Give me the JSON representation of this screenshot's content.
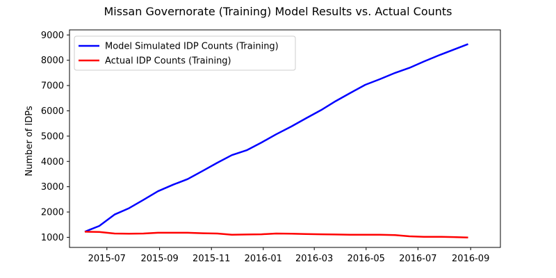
{
  "chart_data": {
    "type": "line",
    "title": "Missan Governorate (Training) Model Results vs. Actual Counts",
    "xlabel": "",
    "ylabel": "Number of IDPs",
    "x_range": [
      "2015-05-18",
      "2016-10-06"
    ],
    "ylim": [
      600,
      9200
    ],
    "x_ticks": [
      "2015-07",
      "2015-09",
      "2015-11",
      "2016-01",
      "2016-03",
      "2016-05",
      "2016-07",
      "2016-09"
    ],
    "y_ticks": [
      1000,
      2000,
      3000,
      4000,
      5000,
      6000,
      7000,
      8000,
      9000
    ],
    "grid": false,
    "legend_placement": "top-left",
    "series": [
      {
        "name": "Model Simulated IDP Counts (Training)",
        "color": "#0000ff",
        "points": [
          [
            "2015-06-05",
            1220
          ],
          [
            "2015-06-22",
            1450
          ],
          [
            "2015-07-10",
            1900
          ],
          [
            "2015-07-27",
            2150
          ],
          [
            "2015-08-13",
            2480
          ],
          [
            "2015-08-30",
            2820
          ],
          [
            "2015-09-17",
            3080
          ],
          [
            "2015-10-04",
            3300
          ],
          [
            "2015-10-22",
            3630
          ],
          [
            "2015-11-08",
            3950
          ],
          [
            "2015-11-25",
            4250
          ],
          [
            "2015-12-13",
            4450
          ],
          [
            "2015-12-30",
            4750
          ],
          [
            "2016-01-16",
            5070
          ],
          [
            "2016-02-03",
            5380
          ],
          [
            "2016-02-20",
            5700
          ],
          [
            "2016-03-09",
            6030
          ],
          [
            "2016-03-26",
            6380
          ],
          [
            "2016-04-12",
            6700
          ],
          [
            "2016-04-30",
            7030
          ],
          [
            "2016-05-17",
            7250
          ],
          [
            "2016-06-04",
            7500
          ],
          [
            "2016-06-21",
            7700
          ],
          [
            "2016-07-08",
            7950
          ],
          [
            "2016-07-26",
            8200
          ],
          [
            "2016-08-12",
            8420
          ],
          [
            "2016-08-29",
            8640
          ]
        ]
      },
      {
        "name": "Actual IDP Counts (Training)",
        "color": "#ff0000",
        "points": [
          [
            "2015-06-05",
            1220
          ],
          [
            "2015-06-22",
            1210
          ],
          [
            "2015-07-10",
            1150
          ],
          [
            "2015-07-27",
            1140
          ],
          [
            "2015-08-13",
            1150
          ],
          [
            "2015-08-30",
            1180
          ],
          [
            "2015-09-17",
            1180
          ],
          [
            "2015-10-04",
            1180
          ],
          [
            "2015-10-22",
            1160
          ],
          [
            "2015-11-08",
            1150
          ],
          [
            "2015-11-25",
            1100
          ],
          [
            "2015-12-13",
            1110
          ],
          [
            "2015-12-30",
            1120
          ],
          [
            "2016-01-16",
            1150
          ],
          [
            "2016-02-03",
            1140
          ],
          [
            "2016-02-20",
            1130
          ],
          [
            "2016-03-09",
            1120
          ],
          [
            "2016-03-26",
            1110
          ],
          [
            "2016-04-12",
            1100
          ],
          [
            "2016-04-30",
            1100
          ],
          [
            "2016-05-17",
            1100
          ],
          [
            "2016-06-04",
            1090
          ],
          [
            "2016-06-21",
            1040
          ],
          [
            "2016-07-08",
            1020
          ],
          [
            "2016-07-26",
            1020
          ],
          [
            "2016-08-12",
            1010
          ],
          [
            "2016-08-29",
            990
          ]
        ]
      }
    ]
  }
}
